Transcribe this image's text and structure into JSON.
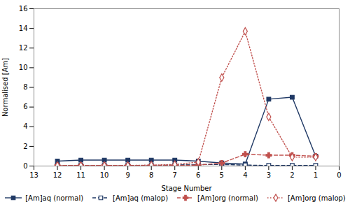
{
  "chart_data": {
    "type": "line",
    "x": [
      12,
      11,
      10,
      9,
      8,
      7,
      6,
      5,
      4,
      3,
      2,
      1
    ],
    "series": [
      {
        "name": "[Am]aq (normal)",
        "color": "#1F3864",
        "marker": "square",
        "line_style": "solid",
        "values": [
          0.5,
          0.6,
          0.6,
          0.6,
          0.6,
          0.6,
          0.5,
          0.3,
          0.2,
          6.8,
          7.0,
          1.0
        ]
      },
      {
        "name": "[Am]aq (malop)",
        "color": "#1F3864",
        "marker": "open-square",
        "line_style": "dashed",
        "values": [
          0.05,
          0.05,
          0.05,
          0.05,
          0.05,
          0.1,
          0.15,
          0.15,
          0.1,
          0.05,
          0.05,
          0.05
        ]
      },
      {
        "name": "[Am]org (normal)",
        "color": "#C0504D",
        "marker": "plus",
        "line_style": "dashed",
        "values": [
          0.05,
          0.05,
          0.05,
          0.05,
          0.05,
          0.05,
          0.1,
          0.3,
          1.2,
          1.1,
          1.1,
          1.0
        ]
      },
      {
        "name": "[Am]org (malop)",
        "color": "#C0504D",
        "marker": "open-diamond",
        "line_style": "dotted",
        "values": [
          0.05,
          0.05,
          0.05,
          0.05,
          0.1,
          0.15,
          0.4,
          9.0,
          13.7,
          5.0,
          0.9,
          0.9
        ]
      }
    ],
    "xlim": [
      13,
      0
    ],
    "xticks": [
      13,
      12,
      11,
      10,
      9,
      8,
      7,
      6,
      5,
      4,
      3,
      2,
      1,
      0
    ],
    "ylim": [
      0,
      16
    ],
    "yticks": [
      0,
      2,
      4,
      6,
      8,
      10,
      12,
      14,
      16
    ],
    "xlabel": "Stage Number",
    "ylabel": "Normalised [Am]",
    "grid": false,
    "legend": "bottom"
  }
}
